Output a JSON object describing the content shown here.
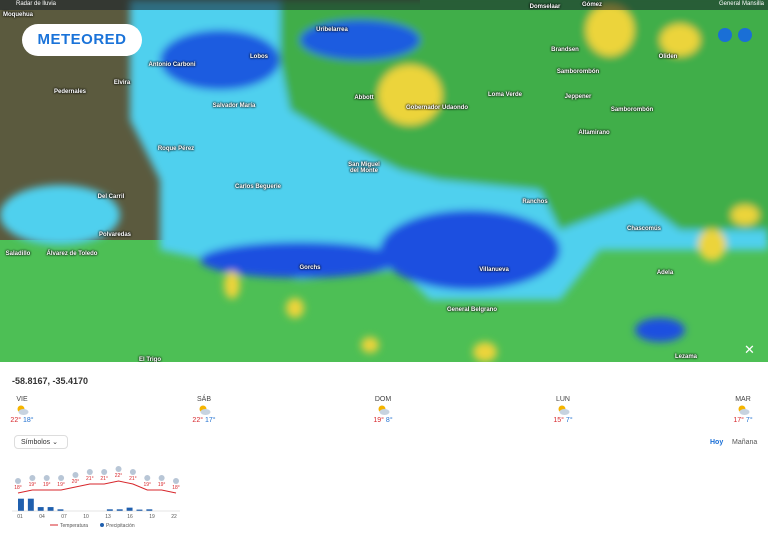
{
  "topbar": {
    "title": "Radar de lluvia",
    "place": "General Mansilla"
  },
  "logo": "METEORED",
  "map": {
    "places": [
      "Moquehua",
      "Domselaar",
      "Gómez",
      "Uribelarrea",
      "Lobos",
      "Antonio Carboni",
      "Elvira",
      "Pedernales",
      "Salvador María",
      "Abbott",
      "Gobernador Udaondo",
      "Loma Verde",
      "Brandsen",
      "Samborombón",
      "Jeppener",
      "Oliden",
      "Samborombón",
      "Altamirano",
      "Roque Pérez",
      "San Miguel del Monte",
      "Carlos Beguerie",
      "Del Carril",
      "Polvaredas",
      "Saladillo",
      "Álvarez de Toledo",
      "Gorchs",
      "Ranchos",
      "Chascomús",
      "Villanueva",
      "Adela",
      "General Belgrano",
      "Lezama",
      "El Trigo"
    ]
  },
  "panel": {
    "coords": "-58.8167, -35.4170",
    "days": [
      {
        "name": "VIE",
        "max": "22°",
        "min": "18°"
      },
      {
        "name": "SÁB",
        "max": "22°",
        "min": "17°"
      },
      {
        "name": "DOM",
        "max": "19°",
        "min": "8°"
      },
      {
        "name": "LUN",
        "max": "15°",
        "min": "7°"
      },
      {
        "name": "MAR",
        "max": "17°",
        "min": "7°"
      }
    ],
    "selector": "Símbolos",
    "tabs": [
      "Hoy",
      "Mañana"
    ]
  },
  "forecast": {
    "hours": [
      "01",
      "04",
      "07",
      "10",
      "13",
      "16",
      "19",
      "22"
    ],
    "temperature": {
      "values": [
        18,
        19,
        19,
        19,
        20,
        21,
        21,
        22,
        21,
        19,
        19,
        18
      ],
      "value_labels": [
        "18°",
        "19°",
        "19°",
        "19°",
        "20°",
        "21°",
        "21°",
        "22°",
        "21°",
        "19°",
        "19°",
        "18°"
      ]
    },
    "precipitation": {
      "values": [
        4.4,
        4.4,
        1.4,
        1.4,
        0.6,
        0,
        0,
        0,
        0,
        0.6,
        0.6,
        1.2,
        0.5,
        0.6,
        0,
        0
      ],
      "ylim": [
        0,
        5
      ]
    },
    "legend": [
      "Temperatura",
      "Precipitación"
    ]
  }
}
